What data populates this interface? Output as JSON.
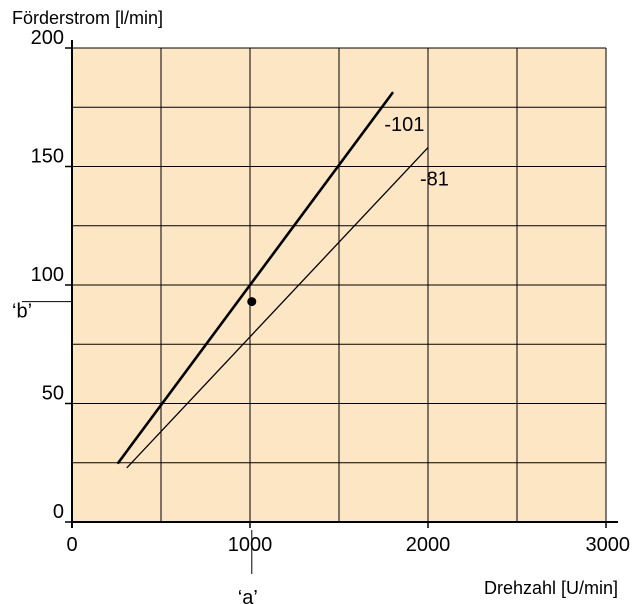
{
  "chart_data": {
    "type": "line",
    "ylabel": "Förderstrom [l/min]",
    "xlabel": "Drehzahl [U/min]",
    "xlim": [
      0,
      3000
    ],
    "ylim": [
      0,
      200
    ],
    "x_ticks": [
      0,
      1000,
      2000,
      3000
    ],
    "y_ticks": [
      0,
      50,
      100,
      150,
      200
    ],
    "x_ticks_labels": [
      "0",
      "1000",
      "2000",
      "3000"
    ],
    "y_ticks_labels": [
      "0",
      "50",
      "100",
      "150",
      "200"
    ],
    "x_minor_step": 500,
    "y_minor_step": 25,
    "grid": true,
    "plot_background": "#fde6c4",
    "series": [
      {
        "name": "-101",
        "x": [
          260,
          1800
        ],
        "y": [
          25,
          181
        ],
        "stroke": "thick"
      },
      {
        "name": "-81",
        "x": [
          310,
          2000
        ],
        "y": [
          23,
          158
        ],
        "stroke": "thin"
      }
    ],
    "reference_point": {
      "x": 1010,
      "y": 93,
      "x_marker_label": "‘a’",
      "y_marker_label": "‘b’"
    }
  }
}
